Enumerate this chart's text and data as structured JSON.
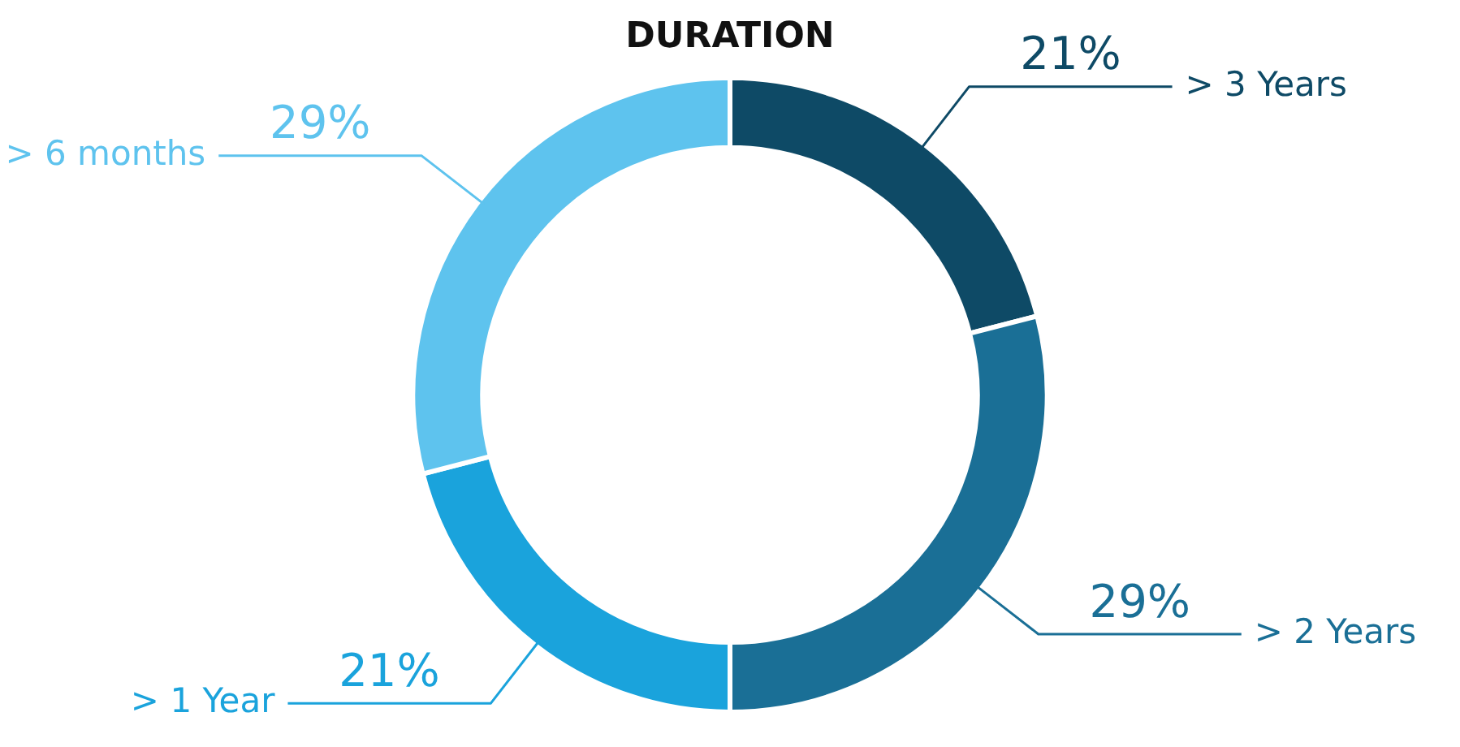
{
  "chart_data": {
    "type": "donut",
    "title": "DURATION",
    "categories": [
      "> 3 Years",
      "> 2 Years",
      "> 1 Year",
      "> 6 months"
    ],
    "values": [
      21,
      29,
      21,
      29
    ],
    "colors": [
      "#0e4a66",
      "#1a6f96",
      "#1aa3dc",
      "#5ec3ee"
    ],
    "value_labels": [
      "21%",
      "29%",
      "21%",
      "29%"
    ],
    "legend": false
  }
}
